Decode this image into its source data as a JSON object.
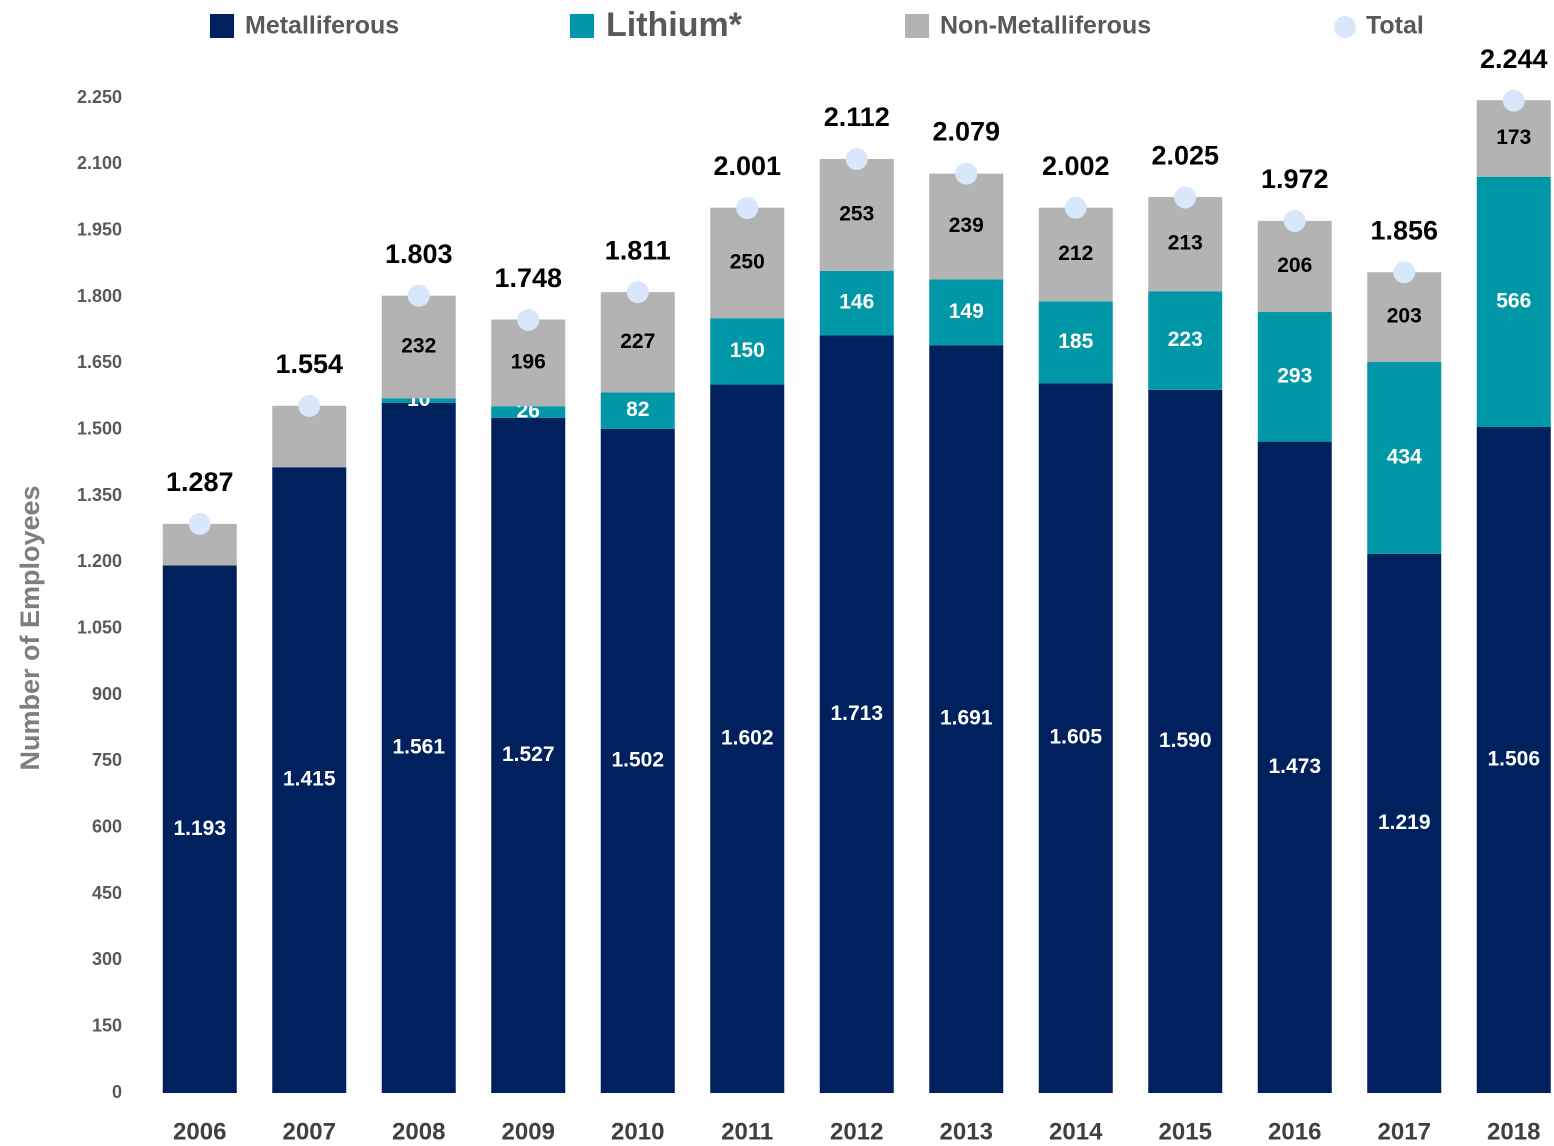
{
  "chart_data": {
    "type": "stacked-bar",
    "y_label": "Number of Employees",
    "categories": [
      "2006",
      "2007",
      "2008",
      "2009",
      "2010",
      "2011",
      "2012",
      "2013",
      "2014",
      "2015",
      "2016",
      "2017",
      "2018"
    ],
    "series": [
      {
        "name": "Metalliferous",
        "color": "#00215e",
        "values": [
          1193,
          1415,
          1561,
          1527,
          1502,
          1602,
          1713,
          1691,
          1605,
          1590,
          1473,
          1219,
          1506
        ],
        "value_labels": [
          "1.193",
          "1.415",
          "1.561",
          "1.527",
          "1.502",
          "1.602",
          "1.713",
          "1.691",
          "1.605",
          "1.590",
          "1.473",
          "1.219",
          "1.506"
        ]
      },
      {
        "name": "Lithium*",
        "color": "#0098a6",
        "values": [
          null,
          null,
          10,
          26,
          82,
          150,
          146,
          149,
          185,
          223,
          293,
          434,
          566
        ]
      },
      {
        "name": "Non-Metalliferous",
        "color": "#b3b3b3",
        "values": [
          94,
          139,
          232,
          196,
          227,
          250,
          253,
          239,
          212,
          213,
          206,
          203,
          173
        ],
        "value_labels": [
          null,
          null,
          "232",
          "196",
          "227",
          "250",
          "253",
          "239",
          "212",
          "213",
          "206",
          "203",
          "173"
        ]
      }
    ],
    "total": {
      "name": "Total",
      "color": "#d9e7fb",
      "values": [
        1287,
        1554,
        1803,
        1748,
        1811,
        2001,
        2112,
        2079,
        2002,
        2025,
        1972,
        1856,
        2244
      ],
      "value_labels": [
        "1.287",
        "1.554",
        "1.803",
        "1.748",
        "1.811",
        "2.001",
        "2.112",
        "2.079",
        "2.002",
        "2.025",
        "1.972",
        "1.856",
        "2.244"
      ]
    },
    "ylim": [
      0,
      2250
    ],
    "yticks": [
      0,
      150,
      300,
      450,
      600,
      750,
      900,
      {
        "value": 1050,
        "label": "1.050"
      },
      {
        "value": 1200,
        "label": "1.200"
      },
      {
        "value": 1350,
        "label": "1.350"
      },
      {
        "value": 1500,
        "label": "1.500"
      },
      {
        "value": 1650,
        "label": "1.650"
      },
      {
        "value": 1800,
        "label": "1.800"
      },
      {
        "value": 1950,
        "label": "1.950"
      },
      {
        "value": 2100,
        "label": "2.100"
      },
      {
        "value": 2250,
        "label": "2.250"
      }
    ],
    "grid": false,
    "legend": "top"
  }
}
